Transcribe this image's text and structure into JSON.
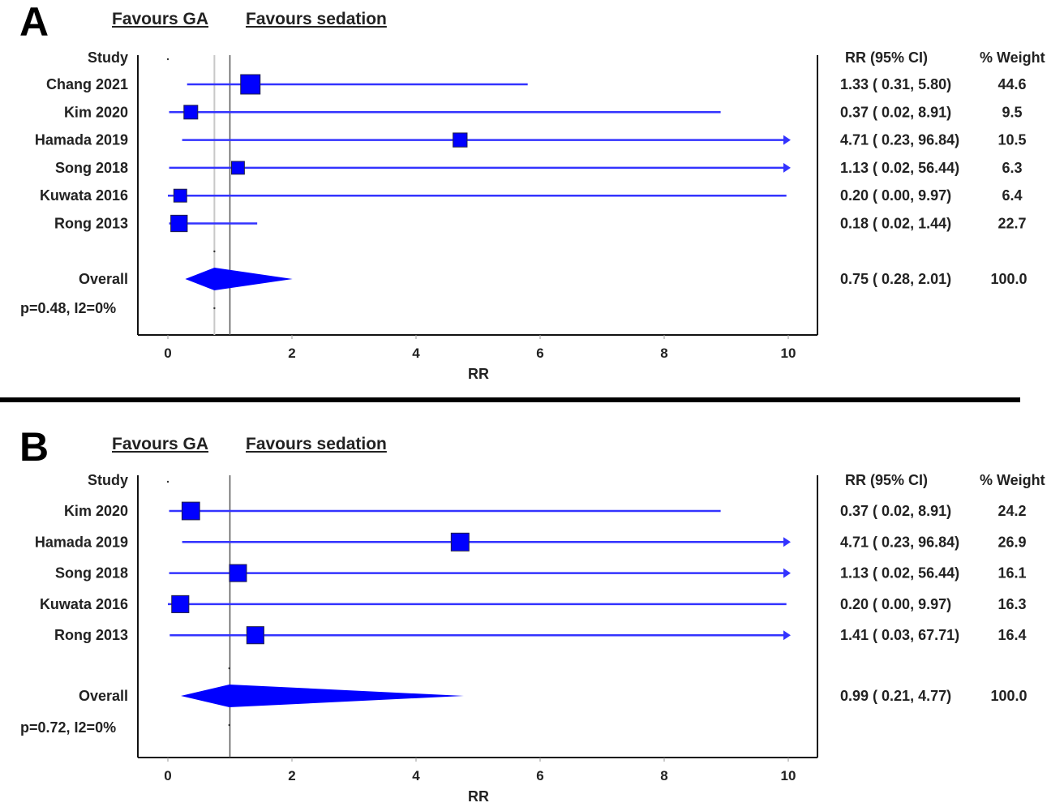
{
  "chart_data": [
    {
      "type": "forest",
      "panel_label": "A",
      "favours_left": "Favours GA",
      "favours_right": "Favours sedation",
      "study_header": "Study",
      "estimate_header": "RR (95% CI)",
      "weight_header": "% Weight",
      "xlabel": "RR",
      "xlim": [
        0,
        10
      ],
      "xticks": [
        0,
        2,
        4,
        6,
        8,
        10
      ],
      "null_line": 1,
      "overall_line": 0.75,
      "studies": [
        {
          "name": "Chang 2021",
          "rr": 1.33,
          "lower": 0.31,
          "upper": 5.8,
          "ci_text": "1.33  (  0.31,  5.80)",
          "weight": "44.6"
        },
        {
          "name": "Kim 2020",
          "rr": 0.37,
          "lower": 0.02,
          "upper": 8.91,
          "ci_text": "0.37  (  0.02,  8.91)",
          "weight": "9.5"
        },
        {
          "name": "Hamada 2019",
          "rr": 4.71,
          "lower": 0.23,
          "upper": 96.84,
          "ci_text": "4.71  (  0.23, 96.84)",
          "weight": "10.5"
        },
        {
          "name": "Song 2018",
          "rr": 1.13,
          "lower": 0.02,
          "upper": 56.44,
          "ci_text": "1.13  (  0.02, 56.44)",
          "weight": "6.3"
        },
        {
          "name": "Kuwata 2016",
          "rr": 0.2,
          "lower": 0.0,
          "upper": 9.97,
          "ci_text": "0.20  (  0.00,  9.97)",
          "weight": "6.4"
        },
        {
          "name": "Rong 2013",
          "rr": 0.18,
          "lower": 0.02,
          "upper": 1.44,
          "ci_text": "0.18  (  0.02,  1.44)",
          "weight": "22.7"
        }
      ],
      "overall": {
        "name": "Overall",
        "rr": 0.75,
        "lower": 0.28,
        "upper": 2.01,
        "ci_text": "0.75  (  0.28,  2.01)",
        "weight": "100.0"
      },
      "heterogeneity": "p=0.48, I2=0%",
      "colors": {
        "marker": "#0000ff",
        "line": "#3333ff",
        "axis": "#000000"
      }
    },
    {
      "type": "forest",
      "panel_label": "B",
      "favours_left": "Favours GA",
      "favours_right": "Favours sedation",
      "study_header": "Study",
      "estimate_header": "RR (95% CI)",
      "weight_header": "% Weight",
      "xlabel": "RR",
      "xlim": [
        0,
        10
      ],
      "xticks": [
        0,
        2,
        4,
        6,
        8,
        10
      ],
      "null_line": 1,
      "overall_line": 0.99,
      "studies": [
        {
          "name": "Kim 2020",
          "rr": 0.37,
          "lower": 0.02,
          "upper": 8.91,
          "ci_text": "0.37  (  0.02,  8.91)",
          "weight": "24.2"
        },
        {
          "name": "Hamada 2019",
          "rr": 4.71,
          "lower": 0.23,
          "upper": 96.84,
          "ci_text": "4.71  (  0.23, 96.84)",
          "weight": "26.9"
        },
        {
          "name": "Song 2018",
          "rr": 1.13,
          "lower": 0.02,
          "upper": 56.44,
          "ci_text": "1.13  (  0.02, 56.44)",
          "weight": "16.1"
        },
        {
          "name": "Kuwata 2016",
          "rr": 0.2,
          "lower": 0.0,
          "upper": 9.97,
          "ci_text": "0.20  (  0.00,  9.97)",
          "weight": "16.3"
        },
        {
          "name": "Rong 2013",
          "rr": 1.41,
          "lower": 0.03,
          "upper": 67.71,
          "ci_text": "1.41  (  0.03, 67.71)",
          "weight": "16.4"
        }
      ],
      "overall": {
        "name": "Overall",
        "rr": 0.99,
        "lower": 0.21,
        "upper": 4.77,
        "ci_text": "0.99  (  0.21,  4.77)",
        "weight": "100.0"
      },
      "heterogeneity": "p=0.72, I2=0%",
      "colors": {
        "marker": "#0000ff",
        "line": "#3333ff",
        "axis": "#000000"
      }
    }
  ]
}
